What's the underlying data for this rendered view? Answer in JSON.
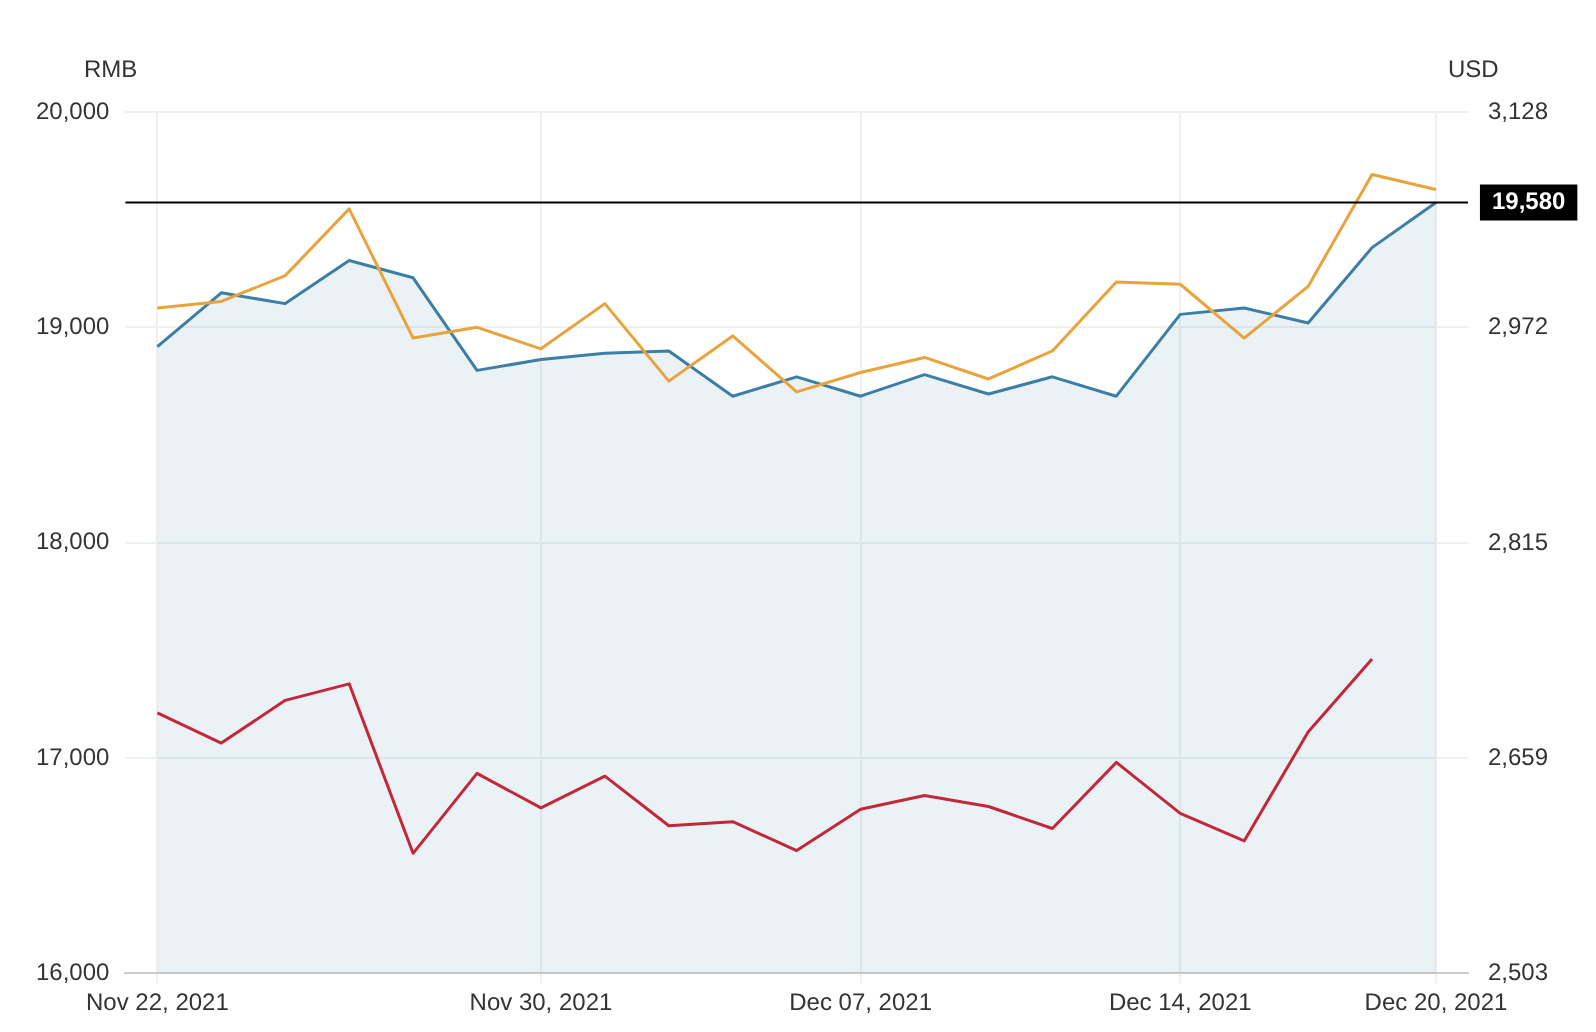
{
  "chart_data": {
    "type": "line",
    "ylabel": "RMB",
    "y2label": "USD",
    "categories": [
      "Nov 22, 2021",
      null,
      null,
      null,
      null,
      null,
      "Nov 30, 2021",
      null,
      null,
      null,
      null,
      "Dec 07, 2021",
      null,
      null,
      null,
      null,
      "Dec 14, 2021",
      null,
      null,
      null,
      "Dec 20, 2021"
    ],
    "series": [
      {
        "type": "area",
        "color": "#3d7ea6",
        "values": [
          18910,
          19160,
          19110,
          19310,
          19230,
          18800,
          18850,
          18880,
          18890,
          18680,
          18770,
          18680,
          18780,
          18690,
          18770,
          18680,
          19060,
          19090,
          19020,
          19370,
          19580
        ]
      },
      {
        "type": "line",
        "color": "#e8a33d",
        "values": [
          19090,
          19120,
          19240,
          19550,
          18950,
          19000,
          18900,
          19110,
          18750,
          18960,
          18700,
          18790,
          18860,
          18760,
          18890,
          19210,
          19200,
          18950,
          19190,
          19710,
          19640
        ]
      },
      {
        "type": "line",
        "color": "#c3283a",
        "axis": "y2",
        "values": [
          2692,
          2670,
          2701,
          2713,
          2590,
          2648,
          2623,
          2646,
          2610,
          2613,
          2592,
          2622,
          2632,
          2624,
          2608,
          2656,
          2619,
          2599,
          2678,
          2731,
          null
        ]
      }
    ],
    "ylim": [
      16000,
      20000
    ],
    "yticks": [
      {
        "value": 16000,
        "label": "16,000"
      },
      {
        "value": 17000,
        "label": "17,000"
      },
      {
        "value": 18000,
        "label": "18,000"
      },
      {
        "value": 19000,
        "label": "19,000"
      },
      {
        "value": 20000,
        "label": "20,000"
      }
    ],
    "y2lim": [
      2503,
      3128
    ],
    "y2ticks": [
      {
        "value": 2503,
        "label": "2,503"
      },
      {
        "value": 2659,
        "label": "2,659"
      },
      {
        "value": 2815,
        "label": "2,815"
      },
      {
        "value": 2972,
        "label": "2,972"
      },
      {
        "value": 3128,
        "label": "3,128"
      }
    ],
    "ref_lines": [
      {
        "axis": "y",
        "value": 19580,
        "label": "19,580",
        "color": "#000000"
      }
    ],
    "grid": true
  }
}
